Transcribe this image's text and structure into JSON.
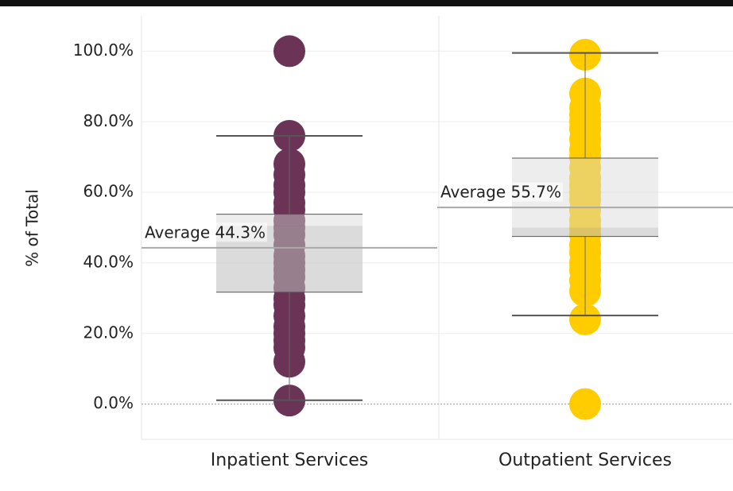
{
  "chart_data": {
    "type": "box",
    "y_label": "% of Total",
    "categories": [
      "Inpatient Services",
      "Outpatient Services"
    ],
    "ylim": [
      -10,
      110
    ],
    "yticks": [
      {
        "value": 0,
        "label": "0.0%"
      },
      {
        "value": 20,
        "label": "20.0%"
      },
      {
        "value": 40,
        "label": "40.0%"
      },
      {
        "value": 60,
        "label": "60.0%"
      },
      {
        "value": 80,
        "label": "80.0%"
      },
      {
        "value": 100,
        "label": "100.0%"
      }
    ],
    "grid": true,
    "series": [
      {
        "name": "Inpatient Services",
        "color": "#6b3456",
        "values": [
          100,
          76,
          68,
          65,
          62,
          60,
          57,
          55,
          52,
          50,
          48,
          45,
          42,
          40,
          38,
          36,
          33,
          30,
          28,
          25,
          22,
          20,
          18,
          16,
          12,
          1
        ],
        "box": {
          "whisker_low": 1.1,
          "q1": 31.7,
          "median": 50.5,
          "q3": 53.8,
          "whisker_high": 76.0
        },
        "reference_line": {
          "label": "Average 44.3%",
          "value": 44.3
        }
      },
      {
        "name": "Outpatient Services",
        "color": "#ffcc00",
        "values": [
          0,
          24,
          32,
          35,
          38,
          40,
          43,
          45,
          48,
          50,
          52,
          55,
          58,
          60,
          62,
          64,
          67,
          70,
          72,
          75,
          78,
          80,
          82,
          84,
          88,
          99
        ],
        "box": {
          "whisker_low": 25.1,
          "q1": 47.5,
          "median": 50.0,
          "q3": 69.7,
          "whisker_high": 99.5
        },
        "reference_line": {
          "label": "Average 55.7%",
          "value": 55.7
        }
      }
    ]
  }
}
